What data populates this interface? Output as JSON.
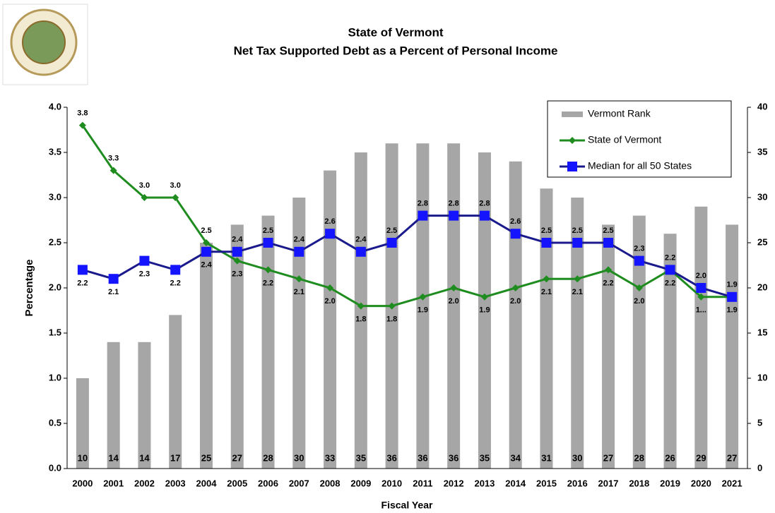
{
  "chart_data": {
    "type": "bar_line",
    "title": "State of Vermont",
    "subtitle": "Net Tax Supported Debt as a Percent of Personal Income",
    "x_label": "Fiscal Year",
    "y_label": "Percentage",
    "categories": [
      "2000",
      "2001",
      "2002",
      "2003",
      "2004",
      "2005",
      "2006",
      "2007",
      "2008",
      "2009",
      "2010",
      "2011",
      "2012",
      "2013",
      "2014",
      "2015",
      "2016",
      "2017",
      "2018",
      "2019",
      "2020",
      "2021"
    ],
    "ylim": [
      0,
      4
    ],
    "yticks": [
      {
        "value": 0,
        "label": "0.0"
      },
      0.5,
      {
        "value": 1,
        "label": "1.0"
      },
      1.5,
      {
        "value": 2,
        "label": "2.0"
      },
      2.5,
      {
        "value": 3,
        "label": "3.0"
      },
      3.5,
      {
        "value": 4,
        "label": "4.0"
      }
    ],
    "y2lim": [
      0,
      40
    ],
    "y2ticks": [
      0,
      5,
      10,
      15,
      20,
      25,
      30,
      35,
      40
    ],
    "legend": "upper right",
    "series": [
      {
        "name": "Vermont Rank",
        "type": "bar",
        "axis": "y2",
        "color": "#a6a6a6",
        "values": [
          10,
          14,
          14,
          17,
          25,
          27,
          28,
          30,
          33,
          35,
          36,
          36,
          36,
          35,
          34,
          31,
          30,
          27,
          28,
          26,
          29,
          27
        ]
      },
      {
        "name": "State of Vermont",
        "type": "line",
        "color": "#1e8c1e",
        "values": [
          3.8,
          3.3,
          3.0,
          3.0,
          2.5,
          2.3,
          2.2,
          2.1,
          2.0,
          1.8,
          1.8,
          1.9,
          2.0,
          1.9,
          2.0,
          2.1,
          2.1,
          2.2,
          2.0,
          2.2,
          1.9,
          1.9
        ],
        "value_labels": [
          "3.8",
          "3.3",
          "3.0",
          "3.0",
          "2.5",
          "2.3",
          "2.2",
          "2.1",
          "2.0",
          "1.8",
          "1.8",
          "1.9",
          "2.0",
          "1.9",
          "2.0",
          "2.1",
          "2.1",
          "2.2",
          "2.0",
          "2.2",
          "1...",
          "1.9"
        ]
      },
      {
        "name": "Median for all 50 States",
        "type": "line",
        "color": "#1a1a8c",
        "values": [
          2.2,
          2.1,
          2.3,
          2.2,
          2.4,
          2.4,
          2.5,
          2.4,
          2.6,
          2.4,
          2.5,
          2.8,
          2.8,
          2.8,
          2.6,
          2.5,
          2.5,
          2.5,
          2.3,
          2.2,
          2.0,
          1.9
        ],
        "value_labels": [
          "2.2",
          "2.1",
          "2.3",
          "2.2",
          "2.4",
          "2.4",
          "2.5",
          "2.4",
          "2.6",
          "2.4",
          "2.5",
          "2.8",
          "2.8",
          "2.8",
          "2.6",
          "2.5",
          "2.5",
          "2.5",
          "2.3",
          "2.2",
          "2.0",
          "1.9"
        ]
      }
    ]
  }
}
